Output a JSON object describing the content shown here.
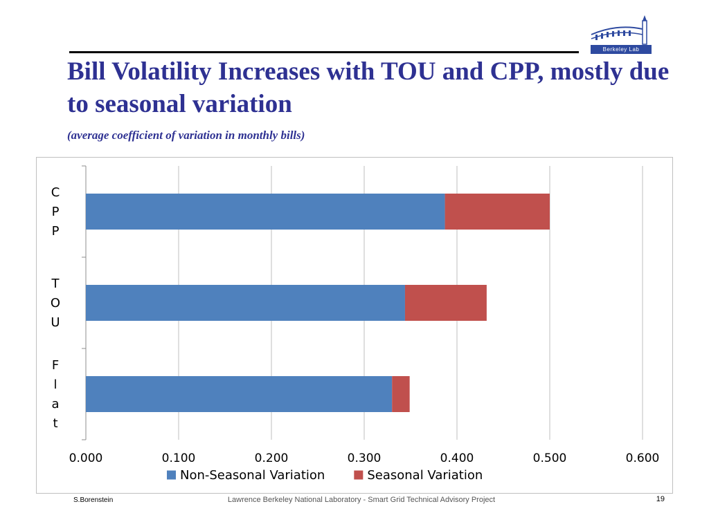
{
  "slide": {
    "title": "Bill Volatility Increases with TOU and CPP, mostly due to seasonal variation",
    "subtitle": "(average coefficient of variation in monthly bills)",
    "logo_text": "Berkeley Lab",
    "footer_left": "S.Borenstein",
    "footer_center": "Lawrence Berkeley National Laboratory - Smart Grid Technical Advisory Project",
    "page_number": "19"
  },
  "chart_data": {
    "type": "bar",
    "orientation": "horizontal",
    "stacked": true,
    "categories": [
      "CPP",
      "TOU",
      "Flat"
    ],
    "series": [
      {
        "name": "Non-Seasonal Variation",
        "values": [
          0.387,
          0.344,
          0.33
        ],
        "color": "#4f81bd"
      },
      {
        "name": "Seasonal Variation",
        "values": [
          0.113,
          0.088,
          0.019
        ],
        "color": "#c0504d"
      }
    ],
    "xlim": [
      0,
      0.6
    ],
    "xticks": [
      "0.000",
      "0.100",
      "0.200",
      "0.300",
      "0.400",
      "0.500",
      "0.600"
    ],
    "grid": true,
    "legend": "bottom"
  }
}
